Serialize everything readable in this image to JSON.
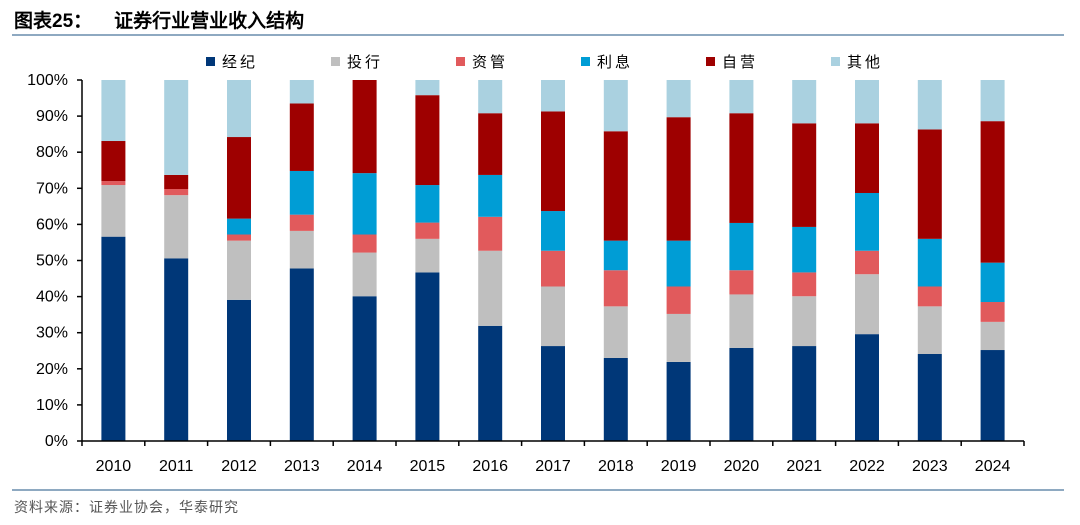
{
  "header": {
    "figure_no": "图表25：",
    "title": "证券行业营业收入结构"
  },
  "footer": {
    "source": "资料来源：证券业协会，华泰研究"
  },
  "chart_data": {
    "type": "bar",
    "stacked": true,
    "title": "证券行业营业收入结构",
    "xlabel": "",
    "ylabel": "",
    "ylim": [
      0,
      100
    ],
    "yticks": [
      "0%",
      "10%",
      "20%",
      "30%",
      "40%",
      "50%",
      "60%",
      "70%",
      "80%",
      "90%",
      "100%"
    ],
    "legend_position": "top",
    "grid": false,
    "categories": [
      "2010",
      "2011",
      "2012",
      "2013",
      "2014",
      "2015",
      "2016",
      "2017",
      "2018",
      "2019",
      "2020",
      "2021",
      "2022",
      "2023",
      "2024"
    ],
    "series": [
      {
        "name": "经纪",
        "color": "#003778",
        "values": [
          56.6,
          50.6,
          39.1,
          47.8,
          40.1,
          46.7,
          31.9,
          26.3,
          23.0,
          21.9,
          25.8,
          26.3,
          29.6,
          24.1,
          25.2
        ]
      },
      {
        "name": "投行",
        "color": "#BFBFBF",
        "values": [
          14.3,
          17.5,
          16.4,
          10.4,
          12.1,
          9.3,
          20.8,
          16.5,
          14.3,
          13.3,
          14.8,
          13.8,
          16.6,
          13.2,
          7.8
        ]
      },
      {
        "name": "资管",
        "color": "#E15A5C",
        "values": [
          1.1,
          1.7,
          1.7,
          4.5,
          5.0,
          4.5,
          9.4,
          9.9,
          10.0,
          7.6,
          6.7,
          6.6,
          6.5,
          5.5,
          5.5
        ]
      },
      {
        "name": "利息",
        "color": "#009DD5",
        "values": [
          0,
          0,
          4.4,
          12.1,
          17.0,
          10.4,
          11.6,
          11.0,
          8.2,
          12.7,
          13.1,
          12.6,
          16.0,
          13.2,
          10.9
        ]
      },
      {
        "name": "自营",
        "color": "#9E0000",
        "values": [
          11.1,
          3.9,
          22.6,
          18.7,
          25.8,
          24.9,
          17.1,
          27.6,
          30.3,
          34.2,
          30.4,
          28.7,
          19.3,
          30.3,
          39.2
        ]
      },
      {
        "name": "其他",
        "color": "#AAD1E0",
        "values": [
          16.9,
          26.3,
          15.8,
          6.5,
          0,
          4.2,
          9.2,
          8.7,
          14.2,
          10.3,
          9.2,
          12.0,
          12.0,
          13.7,
          11.4
        ]
      }
    ]
  }
}
